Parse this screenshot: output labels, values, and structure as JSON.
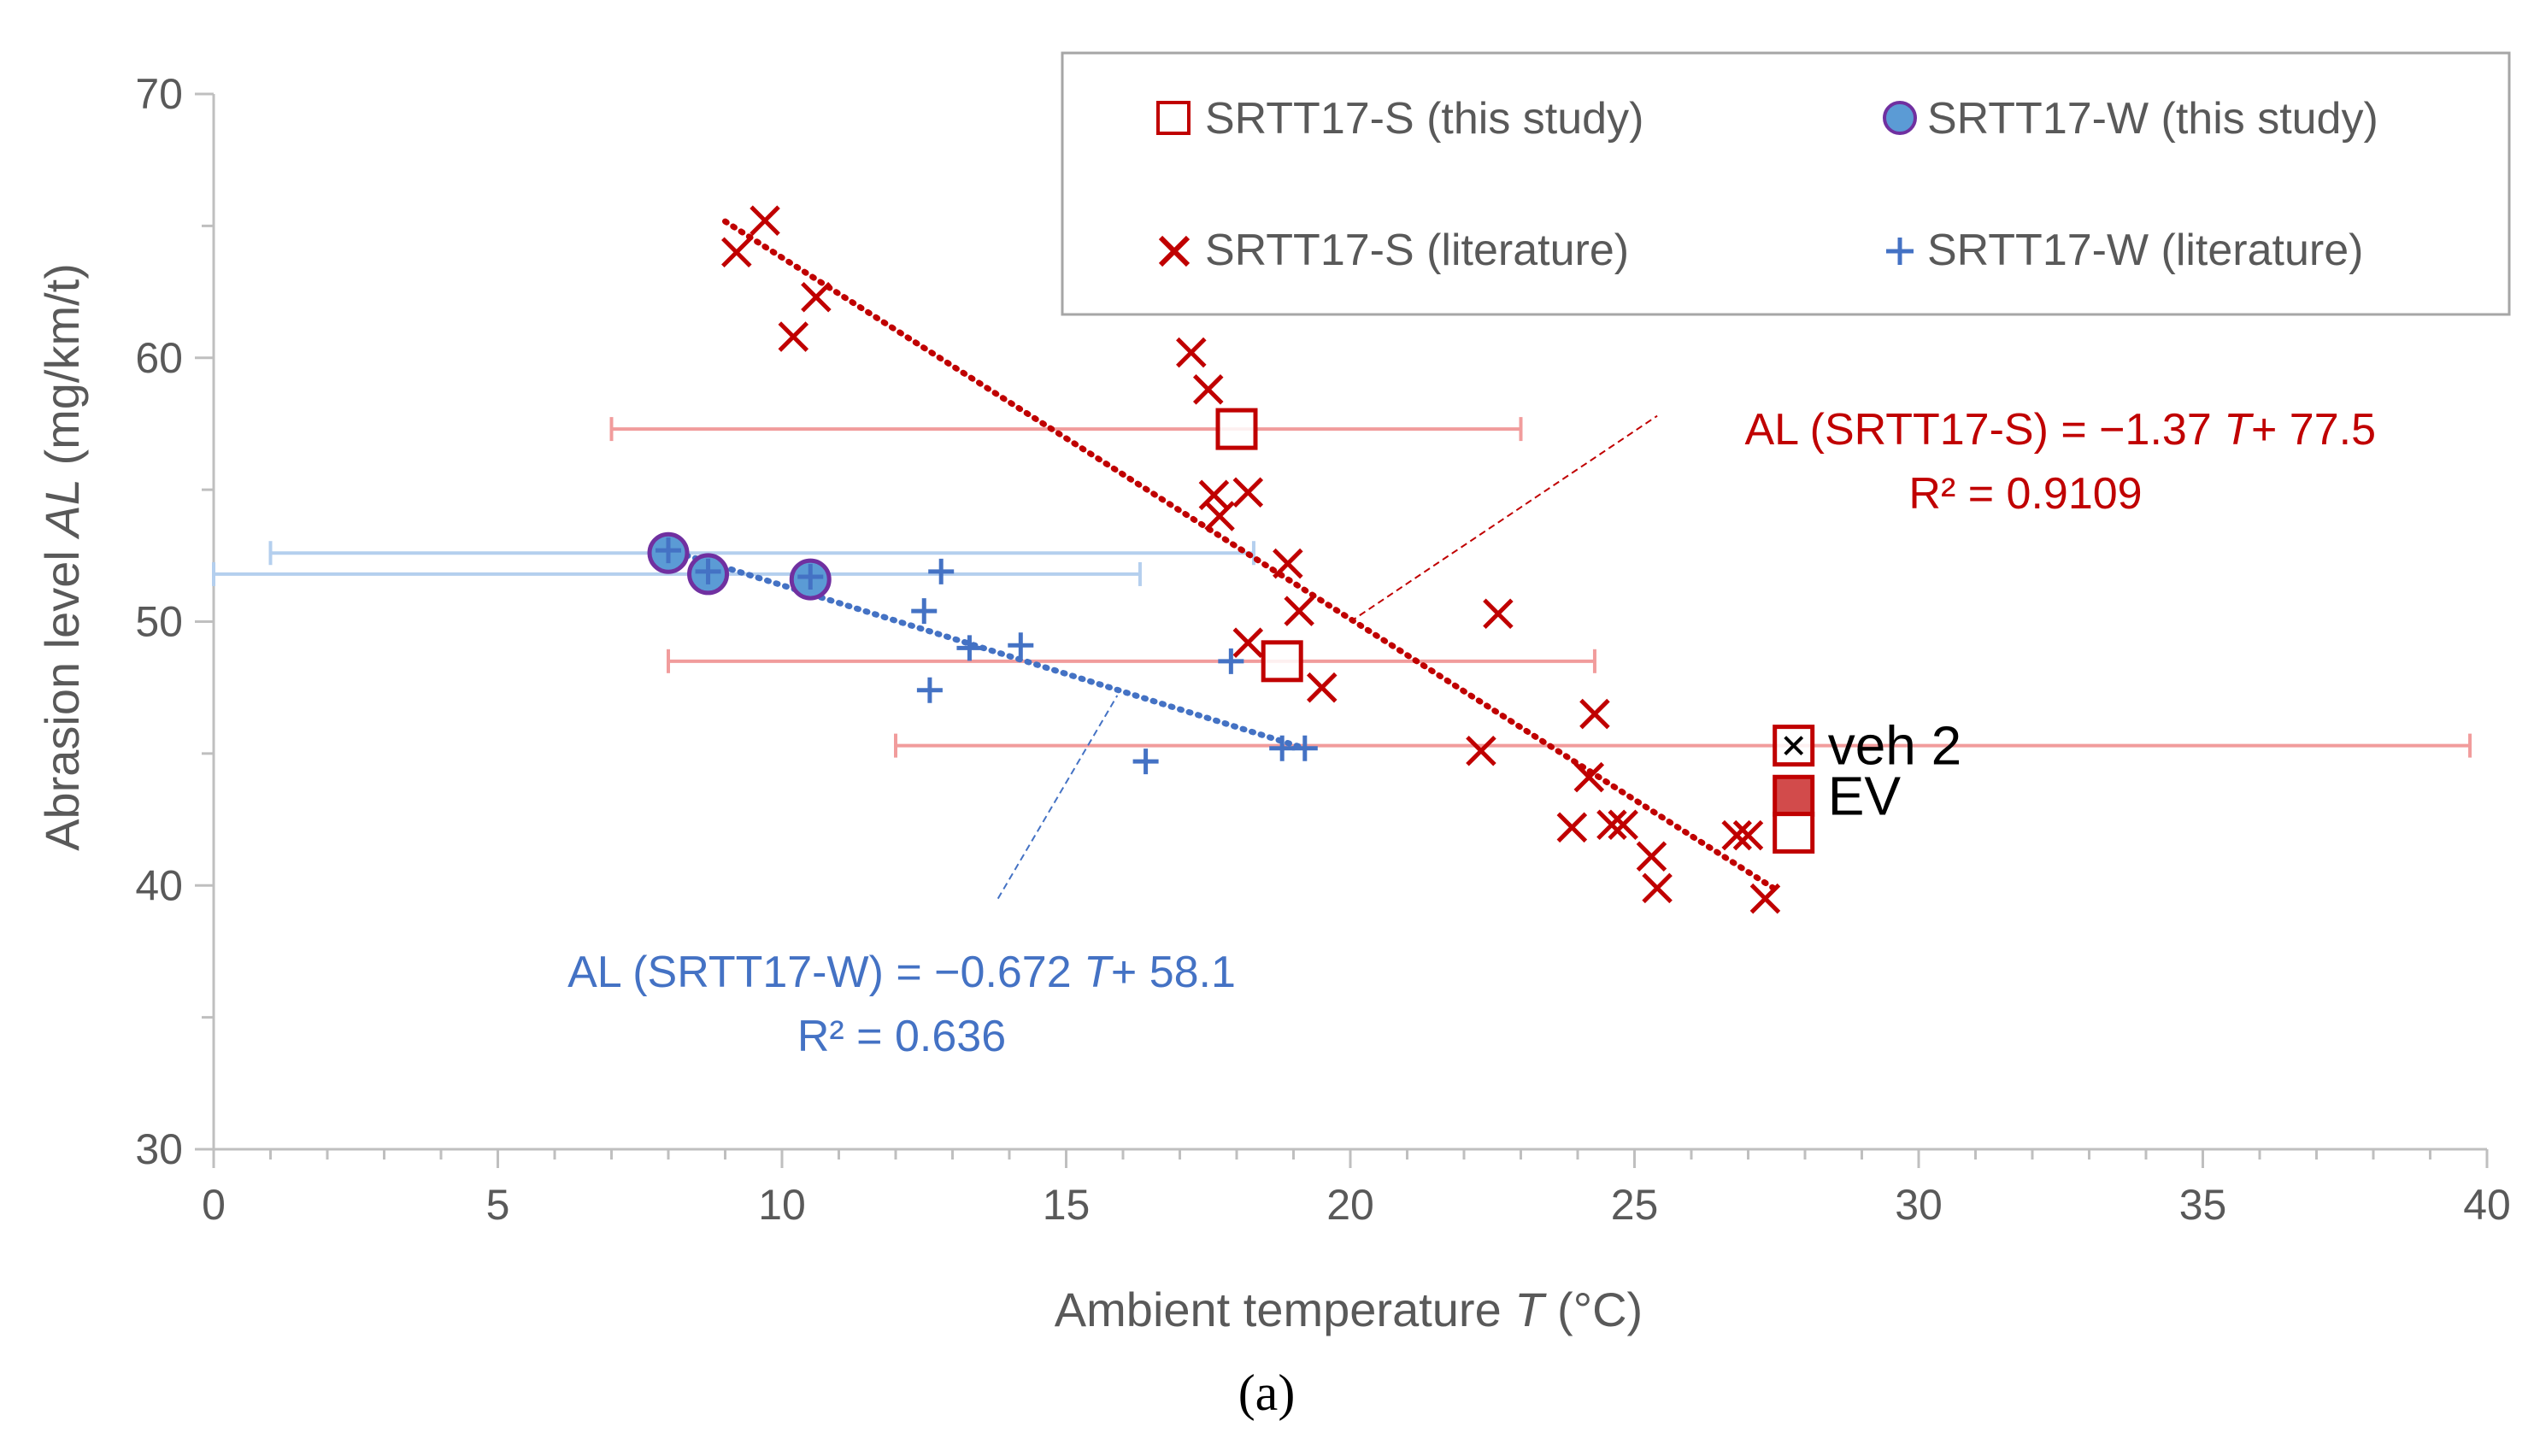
{
  "colors": {
    "red": "#c00000",
    "blue": "#4472c4",
    "purple": "#7030a0",
    "red_errbar": "#f19c9c",
    "blue_errbar": "#b4cfee",
    "axis": "#bfbfbf",
    "text": "#595959"
  },
  "caption": "(a)",
  "chart_data": {
    "type": "scatter",
    "xlabel": {
      "prefix": "Ambient temperature ",
      "var": "T",
      "suffix": " (°C)"
    },
    "ylabel": {
      "prefix": "Abrasion level ",
      "var": "AL",
      "suffix": " (mg/km/t)"
    },
    "xlim": [
      0,
      40
    ],
    "ylim": [
      30,
      70
    ],
    "xticks": [
      0,
      5,
      10,
      15,
      20,
      25,
      30,
      35,
      40
    ],
    "yticks": [
      30,
      40,
      50,
      60,
      70
    ],
    "grid": false,
    "legend_position": "top-right",
    "legend": [
      {
        "label": "SRTT17-S (this study)",
        "marker": "open-square",
        "color": "#c00000"
      },
      {
        "label": "SRTT17-W (this study)",
        "marker": "filled-circle",
        "color": "#4472c4"
      },
      {
        "label": "SRTT17-S (literature)",
        "marker": "x",
        "color": "#c00000"
      },
      {
        "label": "SRTT17-W (literature)",
        "marker": "plus",
        "color": "#4472c4"
      }
    ],
    "series": [
      {
        "name": "SRTT17-S (this study)",
        "marker": "open-square",
        "points": [
          {
            "x": 18.0,
            "y": 57.3,
            "xerr": [
              7.0,
              23.0
            ]
          },
          {
            "x": 18.8,
            "y": 48.5,
            "xerr": [
              8.0,
              24.3
            ]
          },
          {
            "x": 27.8,
            "y": 45.3,
            "xerr": [
              12.0,
              39.7
            ],
            "label": "veh 2",
            "inner": "x"
          },
          {
            "x": 27.8,
            "y": 43.4,
            "filled": true,
            "label": "EV"
          },
          {
            "x": 27.8,
            "y": 42.0
          }
        ]
      },
      {
        "name": "SRTT17-W (this study)",
        "marker": "filled-circle",
        "points": [
          {
            "x": 8.0,
            "y": 52.6,
            "xerr": [
              1.0,
              18.3
            ]
          },
          {
            "x": 8.7,
            "y": 51.8,
            "xerr": [
              0.0,
              16.3
            ]
          },
          {
            "x": 10.5,
            "y": 51.6
          }
        ]
      },
      {
        "name": "SRTT17-S (literature)",
        "marker": "x",
        "x": [
          9.2,
          9.7,
          10.2,
          10.6,
          17.2,
          17.5,
          17.6,
          17.7,
          18.2,
          18.2,
          18.9,
          19.1,
          19.5,
          22.3,
          22.6,
          23.9,
          24.2,
          24.3,
          24.6,
          24.8,
          25.3,
          25.4,
          26.8,
          27.0,
          27.3
        ],
        "y": [
          64.0,
          65.2,
          60.8,
          62.3,
          60.2,
          58.8,
          54.8,
          54.0,
          54.9,
          49.2,
          52.2,
          50.4,
          47.5,
          45.1,
          50.3,
          42.2,
          44.1,
          46.5,
          42.3,
          42.3,
          41.1,
          39.9,
          41.9,
          41.9,
          39.5
        ]
      },
      {
        "name": "SRTT17-W (literature)",
        "marker": "plus",
        "x": [
          8.0,
          8.7,
          10.5,
          12.5,
          12.6,
          12.8,
          13.3,
          14.2,
          16.4,
          17.9,
          18.8,
          19.2
        ],
        "y": [
          52.7,
          51.9,
          51.7,
          50.4,
          47.4,
          51.9,
          49.0,
          49.1,
          44.7,
          48.5,
          45.2,
          45.2
        ]
      }
    ],
    "trendlines": [
      {
        "name": "SRTT17-S",
        "color": "#c00000",
        "x_range": [
          9.0,
          27.5
        ],
        "slope": -1.37,
        "intercept": 77.5,
        "equation_prefix": "AL (SRTT17-S) = −1.37 ",
        "equation_var": "T",
        "equation_suffix": "+ 77.5",
        "r2": "R² = 0.9109"
      },
      {
        "name": "SRTT17-W",
        "color": "#4472c4",
        "x_range": [
          8.0,
          19.2
        ],
        "slope": -0.672,
        "intercept": 58.1,
        "equation_prefix": "AL (SRTT17-W) = −0.672 ",
        "equation_var": "T",
        "equation_suffix": "+ 58.1",
        "r2": "R² = 0.636"
      }
    ]
  }
}
